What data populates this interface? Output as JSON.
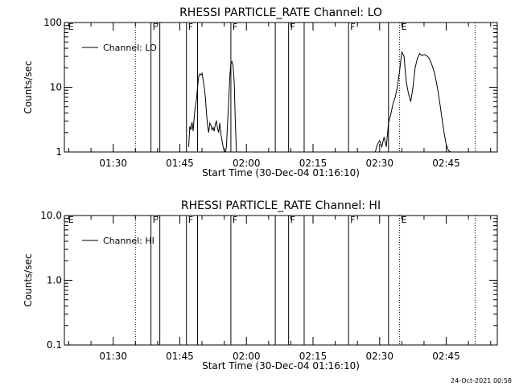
{
  "footer": {
    "timestamp": "24-Oct-2021 00:58"
  },
  "chart_data": [
    {
      "type": "line",
      "title": "RHESSI PARTICLE_RATE Channel: LO",
      "xlabel": "Start Time (30-Dec-04 01:16:10)",
      "ylabel": "Counts/sec",
      "yscale": "log",
      "xlim": [
        "01:19:00",
        "02:56:30"
      ],
      "ylim": [
        1,
        100
      ],
      "x_ticks": [
        "01:30",
        "01:45",
        "02:00",
        "02:15",
        "02:30",
        "02:45"
      ],
      "y_ticks": [
        "1",
        "10",
        "100"
      ],
      "legend": {
        "entries": [
          "Channel: LO"
        ],
        "position": "top-left"
      },
      "grid": false,
      "markers": [
        {
          "time": "01:19:30",
          "label": "E",
          "style": "none"
        },
        {
          "time": "01:35:00",
          "label": "",
          "style": "dotted"
        },
        {
          "time": "01:38:30",
          "label": "F",
          "style": "solid"
        },
        {
          "time": "01:40:30",
          "label": "",
          "style": "solid"
        },
        {
          "time": "01:46:30",
          "label": "F",
          "style": "solid"
        },
        {
          "time": "01:49:00",
          "label": "",
          "style": "solid"
        },
        {
          "time": "01:56:30",
          "label": "F",
          "style": "solid"
        },
        {
          "time": "02:06:30",
          "label": "",
          "style": "solid"
        },
        {
          "time": "02:09:30",
          "label": "F",
          "style": "solid"
        },
        {
          "time": "02:13:00",
          "label": "",
          "style": "solid"
        },
        {
          "time": "02:23:00",
          "label": "F",
          "style": "solid"
        },
        {
          "time": "02:32:00",
          "label": "",
          "style": "solid"
        },
        {
          "time": "02:34:30",
          "label": "E",
          "style": "dotted"
        },
        {
          "time": "02:51:30",
          "label": "",
          "style": "dotted"
        }
      ],
      "series": [
        {
          "name": "Channel: LO",
          "x": [
            "01:47:00",
            "01:47:15",
            "01:47:30",
            "01:47:45",
            "01:48:00",
            "01:48:15",
            "01:48:30",
            "01:48:45",
            "01:49:00",
            "01:49:15",
            "01:49:30",
            "01:49:45",
            "01:50:00",
            "01:50:15",
            "01:50:30",
            "01:50:45",
            "01:51:00",
            "01:51:15",
            "01:51:30",
            "01:51:45",
            "01:52:00",
            "01:52:15",
            "01:52:30",
            "01:52:45",
            "01:53:00",
            "01:53:15",
            "01:53:30",
            "01:53:45",
            "01:54:00",
            "01:54:15",
            "01:54:30",
            "01:54:45",
            "01:55:00",
            "01:55:15",
            "01:55:30",
            "01:55:45",
            "01:56:00",
            "01:56:15",
            "01:56:30",
            "01:56:45",
            "01:57:00",
            "01:57:15",
            "01:57:30",
            "01:57:45",
            "01:58:00",
            "01:58:15",
            "01:58:30",
            "01:58:45"
          ],
          "y": [
            1.2,
            2.5,
            2.2,
            2.9,
            2.1,
            3.5,
            5.2,
            6.5,
            10.0,
            14.5,
            16.0,
            15.5,
            16.5,
            13.0,
            10.0,
            7.0,
            4.0,
            2.5,
            2.0,
            2.8,
            2.6,
            2.2,
            2.4,
            2.1,
            2.7,
            3.0,
            2.3,
            2.0,
            2.8,
            1.9,
            1.5,
            1.2,
            1.05,
            1.0,
            1.2,
            2.8,
            6.0,
            14.0,
            23.0,
            25.0,
            21.0,
            12.0,
            3.0,
            1.0,
            null,
            null,
            null,
            null
          ]
        },
        {
          "name": "Channel: LO",
          "x": [
            "02:29:00",
            "02:29:30",
            "02:30:00",
            "02:30:30",
            "02:31:00",
            "02:31:30",
            "02:32:00",
            "02:32:30",
            "02:33:00",
            "02:33:30",
            "02:34:00",
            "02:34:30",
            "02:35:00",
            "02:35:30",
            "02:36:00",
            "02:36:30",
            "02:37:00",
            "02:37:30",
            "02:38:00",
            "02:38:30",
            "02:39:00",
            "02:39:30",
            "02:40:00",
            "02:40:30",
            "02:41:00",
            "02:41:30",
            "02:42:00",
            "02:42:30",
            "02:43:00",
            "02:43:30",
            "02:44:00",
            "02:44:30",
            "02:45:00",
            "02:45:30",
            "02:46:00",
            "02:46:30",
            "02:47:00"
          ],
          "y": [
            1.0,
            1.3,
            1.5,
            1.2,
            1.7,
            1.2,
            2.8,
            3.8,
            5.5,
            7.0,
            10.0,
            18.0,
            35.0,
            30.0,
            12.0,
            8.0,
            6.0,
            10.0,
            20.0,
            28.0,
            33.0,
            31.0,
            32.0,
            31.0,
            29.0,
            25.0,
            20.0,
            15.0,
            10.0,
            6.0,
            3.5,
            2.0,
            1.3,
            1.05,
            1.0,
            1.0,
            null
          ]
        }
      ]
    },
    {
      "type": "line",
      "title": "RHESSI PARTICLE_RATE Channel: HI",
      "xlabel": "Start Time (30-Dec-04 01:16:10)",
      "ylabel": "Counts/sec",
      "yscale": "log",
      "xlim": [
        "01:19:00",
        "02:56:30"
      ],
      "ylim": [
        0.1,
        10.0
      ],
      "x_ticks": [
        "01:30",
        "01:45",
        "02:00",
        "02:15",
        "02:30",
        "02:45"
      ],
      "y_ticks": [
        "0.1",
        "1.0",
        "10.0"
      ],
      "legend": {
        "entries": [
          "Channel: HI"
        ],
        "position": "top-left"
      },
      "grid": false,
      "markers": [
        {
          "time": "01:19:30",
          "label": "E",
          "style": "none"
        },
        {
          "time": "01:35:00",
          "label": "",
          "style": "dotted"
        },
        {
          "time": "01:38:30",
          "label": "F",
          "style": "solid"
        },
        {
          "time": "01:40:30",
          "label": "",
          "style": "solid"
        },
        {
          "time": "01:46:30",
          "label": "F",
          "style": "solid"
        },
        {
          "time": "01:49:00",
          "label": "",
          "style": "solid"
        },
        {
          "time": "01:56:30",
          "label": "F",
          "style": "solid"
        },
        {
          "time": "02:06:30",
          "label": "",
          "style": "solid"
        },
        {
          "time": "02:09:30",
          "label": "F",
          "style": "solid"
        },
        {
          "time": "02:13:00",
          "label": "",
          "style": "solid"
        },
        {
          "time": "02:23:00",
          "label": "F",
          "style": "solid"
        },
        {
          "time": "02:32:00",
          "label": "",
          "style": "solid"
        },
        {
          "time": "02:34:30",
          "label": "E",
          "style": "dotted"
        },
        {
          "time": "02:51:30",
          "label": "",
          "style": "dotted"
        }
      ],
      "series": [
        {
          "name": "Channel: HI",
          "x": [],
          "y": []
        }
      ]
    }
  ]
}
